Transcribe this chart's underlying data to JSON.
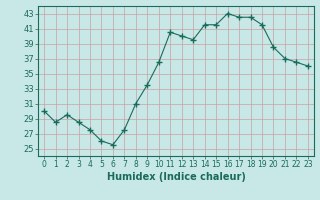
{
  "x": [
    0,
    1,
    2,
    3,
    4,
    5,
    6,
    7,
    8,
    9,
    10,
    11,
    12,
    13,
    14,
    15,
    16,
    17,
    18,
    19,
    20,
    21,
    22,
    23
  ],
  "y": [
    30,
    28.5,
    29.5,
    28.5,
    27.5,
    26,
    25.5,
    27.5,
    31,
    33.5,
    36.5,
    40.5,
    40,
    39.5,
    41.5,
    41.5,
    43,
    42.5,
    42.5,
    41.5,
    38.5,
    37,
    36.5,
    36
  ],
  "line_color": "#1a6b5a",
  "marker": "+",
  "marker_size": 4,
  "marker_color": "#1a6b5a",
  "xlabel": "Humidex (Indice chaleur)",
  "bg_color": "#c8e8e8",
  "grid_color": "#c8a0a0",
  "axis_color": "#1a6b5a",
  "xlim": [
    -0.5,
    23.5
  ],
  "ylim": [
    24,
    44
  ],
  "yticks": [
    25,
    27,
    29,
    31,
    33,
    35,
    37,
    39,
    41,
    43
  ],
  "xticks": [
    0,
    1,
    2,
    3,
    4,
    5,
    6,
    7,
    8,
    9,
    10,
    11,
    12,
    13,
    14,
    15,
    16,
    17,
    18,
    19,
    20,
    21,
    22,
    23
  ]
}
